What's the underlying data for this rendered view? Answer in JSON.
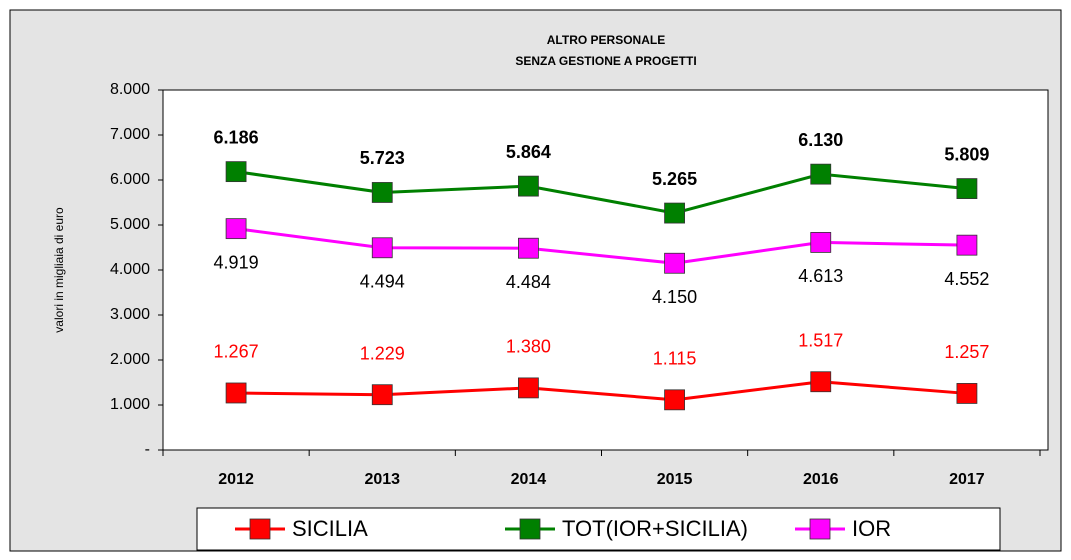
{
  "chart_data": {
    "type": "line",
    "title": [
      "ALTRO PERSONALE",
      "SENZA GESTIONE A PROGETTI"
    ],
    "y_label": "valori in migliaia di euro",
    "categories": [
      "2012",
      "2013",
      "2014",
      "2015",
      "2016",
      "2017"
    ],
    "ylim": [
      0,
      8000
    ],
    "yticks": [
      {
        "value": 0,
        "label": "-"
      },
      {
        "value": 1000,
        "label": "1.000"
      },
      {
        "value": 2000,
        "label": "2.000"
      },
      {
        "value": 3000,
        "label": "3.000"
      },
      {
        "value": 4000,
        "label": "4.000"
      },
      {
        "value": 5000,
        "label": "5.000"
      },
      {
        "value": 6000,
        "label": "6.000"
      },
      {
        "value": 7000,
        "label": "7.000"
      },
      {
        "value": 8000,
        "label": "8.000"
      }
    ],
    "legend": "bottom",
    "series": [
      {
        "name": "SICILIA",
        "color": "#ff0000",
        "label_color": "#ff0000",
        "label_position": "above",
        "label_bold": false,
        "values": [
          1267,
          1229,
          1380,
          1115,
          1517,
          1257
        ],
        "value_labels": [
          "1.267",
          "1.229",
          "1.380",
          "1.115",
          "1.517",
          "1.257"
        ]
      },
      {
        "name": "TOT(IOR+SICILIA)",
        "color": "#008000",
        "label_color": "#000000",
        "label_position": "above",
        "label_bold": true,
        "values": [
          6186,
          5723,
          5864,
          5265,
          6130,
          5809
        ],
        "value_labels": [
          "6.186",
          "5.723",
          "5.864",
          "5.265",
          "6.130",
          "5.809"
        ]
      },
      {
        "name": "IOR",
        "color": "#ff00ff",
        "label_color": "#000000",
        "label_position": "below",
        "label_bold": false,
        "values": [
          4919,
          4494,
          4484,
          4150,
          4613,
          4552
        ],
        "value_labels": [
          "4.919",
          "4.494",
          "4.484",
          "4.150",
          "4.613",
          "4.552"
        ]
      }
    ]
  }
}
